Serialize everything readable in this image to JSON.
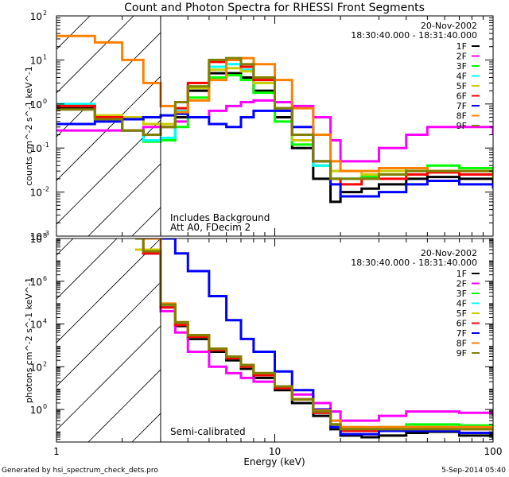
{
  "chart_data": [
    {
      "type": "line",
      "title": "Count and Photon Spectra for RHESSI Front Segments",
      "panel": "top",
      "xlabel": "",
      "ylabel": "counts cm^-2 s^-1 keV^-1",
      "xscale": "log",
      "yscale": "log",
      "xlim": [
        1,
        100
      ],
      "ylim": [
        0.001,
        100
      ],
      "x_ticks": [
        "1",
        "10",
        "100"
      ],
      "y_ticks": [
        {
          "base": "10",
          "exp": "2"
        },
        {
          "base": "10",
          "exp": "1"
        },
        {
          "base": "10",
          "exp": "0"
        },
        {
          "base": "10",
          "exp": "-1"
        },
        {
          "base": "10",
          "exp": "-2"
        },
        {
          "base": "10",
          "exp": "-3"
        }
      ],
      "legend_position": "top-right",
      "date": "20-Nov-2002",
      "time_range": "18:30:40.000 - 18:31:40.000",
      "annotations": [
        "Includes Background",
        "Att A0, FDecim 2"
      ],
      "shaded_region_keV": [
        1,
        3
      ],
      "series": [
        {
          "name": "1F",
          "color": "#000000",
          "x": [
            1,
            1.5,
            2,
            2.5,
            3,
            3.5,
            4,
            5,
            6,
            7,
            8,
            10,
            12,
            15,
            18,
            20,
            25,
            30,
            40,
            50,
            70,
            100
          ],
          "values": [
            0.8,
            0.5,
            0.25,
            0.15,
            0.15,
            0.5,
            2,
            5,
            5,
            4,
            2,
            0.5,
            0.1,
            0.02,
            0.006,
            0.01,
            0.012,
            0.015,
            0.02,
            0.022,
            0.02,
            0.015
          ]
        },
        {
          "name": "2F",
          "color": "#ff00ff",
          "x": [
            1,
            1.5,
            2,
            2.5,
            3,
            3.5,
            4,
            5,
            6,
            7,
            8,
            10,
            12,
            15,
            18,
            20,
            25,
            30,
            40,
            50,
            70,
            100
          ],
          "values": [
            0.25,
            0.25,
            0.25,
            0.3,
            0.35,
            0.4,
            0.5,
            0.7,
            0.9,
            1.1,
            1.2,
            1.1,
            0.9,
            0.5,
            0.15,
            0.05,
            0.05,
            0.1,
            0.2,
            0.3,
            0.3,
            0.2
          ]
        },
        {
          "name": "3F",
          "color": "#00ff00",
          "x": [
            1,
            1.5,
            2,
            2.5,
            3,
            3.5,
            4,
            5,
            6,
            7,
            8,
            10,
            12,
            15,
            18,
            20,
            25,
            30,
            40,
            50,
            70,
            100
          ],
          "values": [
            0.9,
            0.5,
            0.25,
            0.14,
            0.15,
            0.3,
            1.4,
            4,
            4.5,
            3.5,
            1.8,
            0.4,
            0.12,
            0.04,
            0.02,
            0.02,
            0.022,
            0.025,
            0.035,
            0.04,
            0.035,
            0.025
          ]
        },
        {
          "name": "4F",
          "color": "#00ffff",
          "x": [
            1,
            1.5,
            2,
            2.5,
            3,
            3.5,
            4,
            5,
            6,
            7,
            8,
            10,
            12,
            15,
            18,
            20,
            25,
            30,
            40,
            50,
            70,
            100
          ],
          "values": [
            1.0,
            0.5,
            0.25,
            0.15,
            0.17,
            0.7,
            2.5,
            7,
            8,
            6,
            3,
            0.7,
            0.15,
            0.04,
            0.02,
            0.02,
            0.02,
            0.025,
            0.03,
            0.03,
            0.03,
            0.025
          ]
        },
        {
          "name": "5F",
          "color": "#cccc00",
          "x": [
            1,
            1.5,
            2,
            2.5,
            3,
            3.5,
            4,
            5,
            6,
            7,
            8,
            10,
            12,
            15,
            18,
            20,
            25,
            30,
            40,
            50,
            70,
            100
          ],
          "values": [
            0.9,
            0.55,
            0.5,
            0.35,
            0.35,
            0.6,
            2.3,
            6,
            6.5,
            5.5,
            3,
            0.7,
            0.15,
            0.05,
            0.03,
            0.03,
            0.025,
            0.03,
            0.03,
            0.03,
            0.03,
            0.025
          ]
        },
        {
          "name": "6F",
          "color": "#ff0000",
          "x": [
            1,
            1.5,
            2,
            2.5,
            3,
            3.5,
            4,
            5,
            6,
            7,
            8,
            10,
            12,
            15,
            18,
            20,
            25,
            30,
            40,
            50,
            70,
            100
          ],
          "values": [
            0.9,
            0.5,
            0.25,
            0.2,
            0.3,
            0.8,
            3,
            9,
            10,
            7,
            3.5,
            0.8,
            0.2,
            0.05,
            0.02,
            0.015,
            0.02,
            0.02,
            0.025,
            0.028,
            0.025,
            0.02
          ]
        },
        {
          "name": "7F",
          "color": "#0000ff",
          "x": [
            1,
            1.5,
            2,
            2.5,
            3,
            3.5,
            4,
            5,
            6,
            7,
            8,
            10,
            12,
            15,
            18,
            20,
            25,
            30,
            40,
            50,
            70,
            100
          ],
          "values": [
            0.35,
            0.4,
            0.45,
            0.5,
            0.55,
            0.6,
            0.5,
            0.35,
            0.3,
            0.5,
            0.7,
            0.7,
            0.3,
            0.05,
            0.015,
            0.008,
            0.008,
            0.01,
            0.015,
            0.018,
            0.015,
            0.012
          ]
        },
        {
          "name": "8F",
          "color": "#ff8000",
          "x": [
            1,
            1.5,
            2,
            2.5,
            3,
            3.5,
            4,
            5,
            6,
            7,
            8,
            10,
            12,
            15,
            18,
            20,
            25,
            30,
            40,
            50,
            70,
            100
          ],
          "values": [
            35,
            25,
            10,
            3,
            0.9,
            0.65,
            1.2,
            3.5,
            10,
            11,
            8,
            3.5,
            0.8,
            0.2,
            0.05,
            0.03,
            0.03,
            0.035,
            0.035,
            0.03,
            0.03,
            0.025
          ]
        },
        {
          "name": "9F",
          "color": "#808000",
          "x": [
            1,
            1.5,
            2,
            2.5,
            3,
            3.5,
            4,
            5,
            6,
            7,
            8,
            10,
            12,
            15,
            18,
            20,
            25,
            30,
            40,
            50,
            70,
            100
          ],
          "values": [
            0.75,
            0.45,
            0.25,
            0.2,
            0.3,
            1.1,
            2.5,
            10,
            11,
            8,
            4,
            0.8,
            0.2,
            0.05,
            0.02,
            0.02,
            0.02,
            0.025,
            0.03,
            0.03,
            0.03,
            0.02
          ]
        }
      ]
    },
    {
      "type": "line",
      "panel": "bottom",
      "xlabel": "Energy (keV)",
      "ylabel": "photons cm^-2 s^-1 keV^-1",
      "xscale": "log",
      "yscale": "log",
      "xlim": [
        1,
        100
      ],
      "ylim": [
        0.03,
        100000000
      ],
      "x_ticks": [
        "1",
        "10",
        "100"
      ],
      "y_ticks": [
        {
          "base": "10",
          "exp": "8"
        },
        {
          "base": "10",
          "exp": "6"
        },
        {
          "base": "10",
          "exp": "4"
        },
        {
          "base": "10",
          "exp": "2"
        },
        {
          "base": "10",
          "exp": "0"
        }
      ],
      "legend_position": "top-right",
      "date": "20-Nov-2002",
      "time_range": "18:30:40.000 - 18:31:40.000",
      "annotations": [
        "Semi-calibrated"
      ],
      "shaded_region_keV": [
        1,
        3
      ],
      "series": [
        {
          "name": "1F",
          "color": "#000000",
          "x": [
            2.3,
            2.5,
            3,
            3.5,
            4,
            5,
            6,
            7,
            8,
            10,
            12,
            15,
            18,
            20,
            25,
            30,
            40,
            50,
            70,
            100
          ],
          "values": [
            30000000,
            20000000,
            60000,
            8000,
            2000,
            500,
            200,
            80,
            30,
            8,
            2,
            0.5,
            0.12,
            0.06,
            0.05,
            0.06,
            0.08,
            0.09,
            0.06,
            0.04
          ]
        },
        {
          "name": "2F",
          "color": "#ff00ff",
          "x": [
            2.3,
            2.5,
            3,
            3.5,
            4,
            5,
            6,
            7,
            8,
            10,
            12,
            15,
            18,
            20,
            25,
            30,
            40,
            50,
            70,
            100
          ],
          "values": [
            30000000,
            25000000,
            40000,
            4000,
            500,
            100,
            50,
            30,
            20,
            10,
            5,
            2,
            0.8,
            0.3,
            0.3,
            0.5,
            0.8,
            0.8,
            0.7,
            0.5
          ]
        },
        {
          "name": "3F",
          "color": "#00ff00",
          "x": [
            2.3,
            2.5,
            3,
            3.5,
            4,
            5,
            6,
            7,
            8,
            10,
            12,
            15,
            18,
            20,
            25,
            30,
            40,
            50,
            70,
            100
          ],
          "values": [
            30000000,
            22000000,
            70000,
            10000,
            2500,
            600,
            250,
            100,
            40,
            10,
            3,
            0.8,
            0.2,
            0.12,
            0.12,
            0.15,
            0.2,
            0.2,
            0.18,
            0.15
          ]
        },
        {
          "name": "4F",
          "color": "#00ffff",
          "x": [
            2.3,
            2.5,
            3,
            3.5,
            4,
            5,
            6,
            7,
            8,
            10,
            12,
            15,
            18,
            20,
            25,
            30,
            40,
            50,
            70,
            100
          ],
          "values": [
            30000000,
            25000000,
            75000,
            10000,
            2500,
            600,
            250,
            100,
            40,
            10,
            3,
            0.7,
            0.15,
            0.1,
            0.1,
            0.12,
            0.15,
            0.15,
            0.15,
            0.12
          ]
        },
        {
          "name": "5F",
          "color": "#cccc00",
          "x": [
            2.3,
            2.5,
            3,
            3.5,
            4,
            5,
            6,
            7,
            8,
            10,
            12,
            15,
            18,
            20,
            25,
            30,
            40,
            50,
            70,
            100
          ],
          "values": [
            30000000,
            30000000,
            80000,
            12000,
            3000,
            700,
            300,
            120,
            50,
            12,
            3,
            0.9,
            0.3,
            0.15,
            0.12,
            0.15,
            0.15,
            0.15,
            0.15,
            0.12
          ]
        },
        {
          "name": "6F",
          "color": "#ff0000",
          "x": [
            2.3,
            2.5,
            3,
            3.5,
            4,
            5,
            6,
            7,
            8,
            10,
            12,
            15,
            18,
            20,
            25,
            30,
            40,
            50,
            70,
            100
          ],
          "values": [
            100000000,
            20000000,
            60000,
            9000,
            2500,
            600,
            250,
            100,
            40,
            10,
            3,
            0.7,
            0.2,
            0.1,
            0.1,
            0.12,
            0.12,
            0.12,
            0.12,
            0.1
          ]
        },
        {
          "name": "7F",
          "color": "#0000ff",
          "x": [
            2.3,
            2.5,
            3,
            3.5,
            4,
            5,
            6,
            7,
            8,
            10,
            12,
            15,
            18,
            20,
            25,
            30,
            40,
            50,
            70,
            100
          ],
          "values": [
            100000000,
            100000000,
            100000000,
            20000000,
            3000000,
            200000,
            15000,
            2000,
            500,
            60,
            8,
            1,
            0.15,
            0.07,
            0.07,
            0.1,
            0.1,
            0.1,
            0.08,
            0.08
          ]
        },
        {
          "name": "8F",
          "color": "#ff8000",
          "x": [
            2.3,
            2.5,
            3,
            3.5,
            4,
            5,
            6,
            7,
            8,
            10,
            12,
            15,
            18,
            20,
            25,
            30,
            40,
            50,
            70,
            100
          ],
          "values": [
            100000000,
            100000000,
            90000,
            12000,
            3000,
            700,
            300,
            120,
            50,
            12,
            3,
            0.9,
            0.3,
            0.15,
            0.15,
            0.15,
            0.15,
            0.15,
            0.15,
            0.12
          ]
        },
        {
          "name": "9F",
          "color": "#808000",
          "x": [
            2.3,
            2.5,
            3,
            3.5,
            4,
            5,
            6,
            7,
            8,
            10,
            12,
            15,
            18,
            20,
            25,
            30,
            40,
            50,
            70,
            100
          ],
          "values": [
            100000000,
            25000000,
            80000,
            12000,
            3000,
            700,
            300,
            120,
            50,
            12,
            3,
            0.8,
            0.2,
            0.12,
            0.12,
            0.12,
            0.12,
            0.12,
            0.12,
            0.1
          ]
        }
      ]
    }
  ],
  "footer": {
    "left": "Generated by hsi_spectrum_check_dets.pro",
    "right": "5-Sep-2014 05:40"
  }
}
